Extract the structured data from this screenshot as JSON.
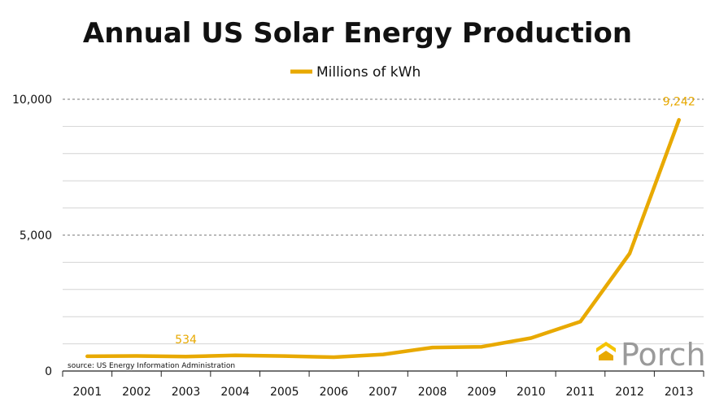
{
  "chart_data": {
    "type": "line",
    "title": "Annual US Solar Energy Production",
    "xlabel": "",
    "ylabel": "",
    "x": [
      "2001",
      "2002",
      "2003",
      "2004",
      "2005",
      "2006",
      "2007",
      "2008",
      "2009",
      "2010",
      "2011",
      "2012",
      "2013"
    ],
    "series": [
      {
        "name": "Millions of kWh",
        "color": "#e8a900",
        "values": [
          543,
          555,
          534,
          575,
          550,
          508,
          612,
          864,
          891,
          1212,
          1818,
          4327,
          9242
        ]
      }
    ],
    "ylim": [
      0,
      10000
    ],
    "y_ticks": [
      "0",
      "5,000",
      "10,000"
    ],
    "gridlines": "dashed major at 5,000 and 10,000, solid minor every 1,000",
    "legend_position": "top-center",
    "annotations": [
      {
        "label": "534",
        "x": "2003",
        "value": 534
      },
      {
        "label": "9,242",
        "x": "2013",
        "value": 9242
      }
    ],
    "source_note": "source: US Energy Information Administration",
    "brand": {
      "name": "Porch",
      "icon": "porch-logo-icon",
      "colors": [
        "#f5c400",
        "#e8a900"
      ]
    }
  }
}
